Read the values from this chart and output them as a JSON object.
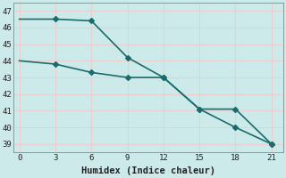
{
  "title": "",
  "xlabel": "Humidex (Indice chaleur)",
  "ylabel": "",
  "background_color": "#cdeaea",
  "grid_color": "#e8d0d0",
  "line_color": "#1a6b6b",
  "x": [
    0,
    3,
    6,
    9,
    12,
    15,
    18,
    21
  ],
  "line1": [
    46.5,
    46.5,
    46.4,
    44.2,
    43.0,
    41.1,
    41.1,
    39.0
  ],
  "line2": [
    44.0,
    43.8,
    43.3,
    43.0,
    43.0,
    41.1,
    40.0,
    39.0
  ],
  "xlim": [
    -0.5,
    22
  ],
  "ylim": [
    38.5,
    47.5
  ],
  "xticks": [
    0,
    3,
    6,
    9,
    12,
    15,
    18,
    21
  ],
  "yticks": [
    39,
    40,
    41,
    42,
    43,
    44,
    45,
    46,
    47
  ],
  "marker": "D",
  "markersize": 3,
  "linewidth": 1.2,
  "font_family": "monospace",
  "xlabel_fontsize": 7.5,
  "tick_fontsize": 6.5
}
